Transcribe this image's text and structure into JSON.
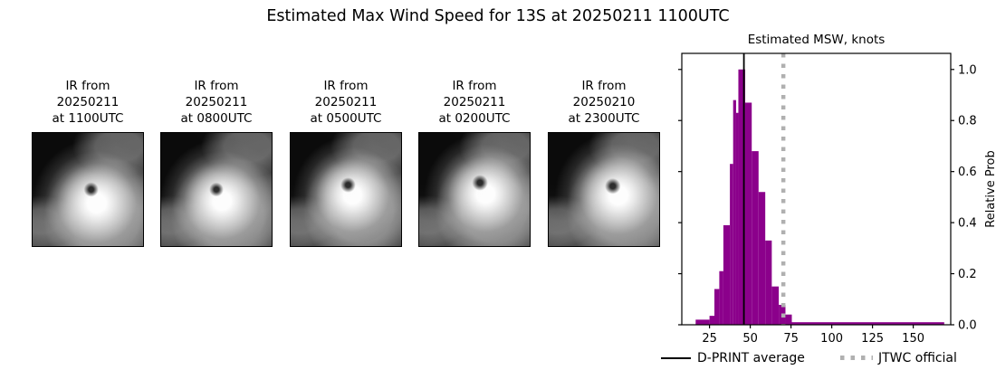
{
  "figure": {
    "title": "Estimated Max Wind Speed for 13S at 20250211 1100UTC",
    "background": "#ffffff"
  },
  "ir_panels": [
    {
      "label_line1": "IR from",
      "label_line2": "20250211",
      "label_line3": "at 1100UTC"
    },
    {
      "label_line1": "IR from",
      "label_line2": "20250211",
      "label_line3": "at 0800UTC"
    },
    {
      "label_line1": "IR from",
      "label_line2": "20250211",
      "label_line3": "at 0500UTC"
    },
    {
      "label_line1": "IR from",
      "label_line2": "20250211",
      "label_line3": "at 0200UTC"
    },
    {
      "label_line1": "IR from",
      "label_line2": "20250210",
      "label_line3": "at 2300UTC"
    }
  ],
  "chart_data": {
    "type": "bar",
    "title": "Estimated MSW, knots",
    "xlabel": "",
    "ylabel": "Relative Prob",
    "xlim": [
      8,
      173
    ],
    "ylim": [
      0,
      1.063
    ],
    "x_ticks": [
      25,
      50,
      75,
      100,
      125,
      150
    ],
    "y_ticks": [
      0.0,
      0.2,
      0.4,
      0.6,
      0.8,
      1.0
    ],
    "y_tick_labels": [
      "0.0",
      "0.2",
      "0.4",
      "0.6",
      "0.8",
      "1.0"
    ],
    "grid": false,
    "bar_color": "#8B008B",
    "bars": [
      {
        "x0": 16.5,
        "x1": 25.0,
        "p": 0.02
      },
      {
        "x0": 25.0,
        "x1": 28.0,
        "p": 0.035
      },
      {
        "x0": 28.0,
        "x1": 31.0,
        "p": 0.14
      },
      {
        "x0": 31.0,
        "x1": 33.5,
        "p": 0.21
      },
      {
        "x0": 33.5,
        "x1": 37.5,
        "p": 0.39
      },
      {
        "x0": 37.5,
        "x1": 39.5,
        "p": 0.63
      },
      {
        "x0": 39.5,
        "x1": 41.3,
        "p": 0.88
      },
      {
        "x0": 41.3,
        "x1": 42.7,
        "p": 0.83
      },
      {
        "x0": 42.7,
        "x1": 46.9,
        "p": 1.0
      },
      {
        "x0": 46.9,
        "x1": 50.9,
        "p": 0.87
      },
      {
        "x0": 50.9,
        "x1": 55.1,
        "p": 0.68
      },
      {
        "x0": 55.1,
        "x1": 59.2,
        "p": 0.52
      },
      {
        "x0": 59.2,
        "x1": 63.2,
        "p": 0.33
      },
      {
        "x0": 63.2,
        "x1": 67.5,
        "p": 0.15
      },
      {
        "x0": 67.5,
        "x1": 71.6,
        "p": 0.078
      },
      {
        "x0": 71.6,
        "x1": 75.5,
        "p": 0.04
      },
      {
        "x0": 75.5,
        "x1": 169.0,
        "p": 0.01
      }
    ],
    "vlines": [
      {
        "label": "D-PRINT average",
        "x": 46.1,
        "style": "solid",
        "color": "#000000"
      },
      {
        "label": "JTWC official",
        "x": 70.3,
        "style": "dotted",
        "color": "#b0b0b0"
      }
    ],
    "legend": [
      {
        "label": "D-PRINT average",
        "line_style": "solid",
        "color": "#000000"
      },
      {
        "label": "JTWC official",
        "line_style": "dotted",
        "color": "#b0b0b0"
      }
    ],
    "legend_position": "bottom"
  }
}
